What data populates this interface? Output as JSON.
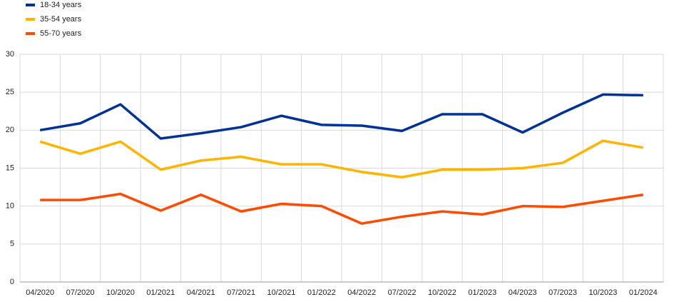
{
  "chart_data": {
    "type": "line",
    "categories": [
      "04/2020",
      "07/2020",
      "10/2020",
      "01/2021",
      "04/2021",
      "07/2021",
      "10/2021",
      "01/2022",
      "04/2022",
      "07/2022",
      "10/2022",
      "01/2023",
      "04/2023",
      "07/2023",
      "10/2023",
      "01/2024"
    ],
    "series": [
      {
        "name": "18-34 years",
        "color": "#003299",
        "values": [
          20.0,
          20.9,
          23.4,
          18.9,
          19.6,
          20.4,
          21.9,
          20.7,
          20.6,
          19.9,
          22.1,
          22.1,
          19.7,
          22.3,
          24.7,
          24.6
        ]
      },
      {
        "name": "35-54 years",
        "color": "#ffb400",
        "values": [
          18.5,
          16.9,
          18.5,
          14.8,
          16.0,
          16.5,
          15.5,
          15.5,
          14.5,
          13.8,
          14.8,
          14.8,
          15.0,
          15.7,
          18.6,
          17.7
        ]
      },
      {
        "name": "55-70 years",
        "color": "#ff4b00",
        "values": [
          10.8,
          10.8,
          11.6,
          9.4,
          11.5,
          9.3,
          10.3,
          10.0,
          7.7,
          8.6,
          9.3,
          8.9,
          10.0,
          9.9,
          10.7,
          11.5
        ]
      }
    ],
    "ylim": [
      0,
      30
    ],
    "yticks": [
      0,
      5,
      10,
      15,
      20,
      25,
      30
    ],
    "grid": true,
    "legend": "top-left"
  }
}
